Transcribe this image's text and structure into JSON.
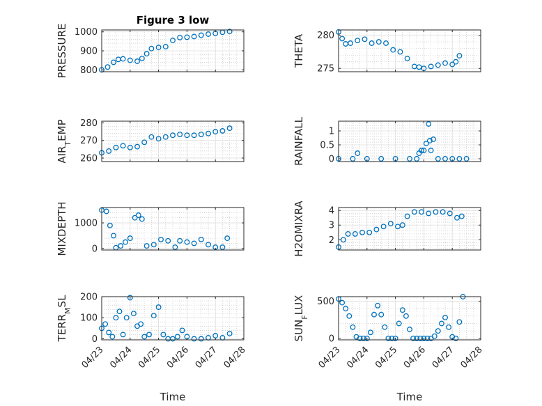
{
  "figure": {
    "title": "Figure 3 low"
  },
  "style": {
    "marker_color": "#0072BD",
    "axis_color": "#262626",
    "grid_color": "#c8c8c8"
  },
  "chart_data": [
    {
      "id": "pressure",
      "type": "scatter",
      "ylabel": "PRESSURE",
      "title": "Figure 3 low",
      "xlim": [
        "04/23",
        "04/28"
      ],
      "ylim": [
        790,
        1010
      ],
      "yticks": [
        800,
        900,
        1000
      ],
      "x": [
        "04/23 00:00",
        "04/23 05:00",
        "04/23 10:00",
        "04/23 14:00",
        "04/23 18:00",
        "04/24 00:00",
        "04/24 06:00",
        "04/24 10:00",
        "04/24 14:00",
        "04/24 18:00",
        "04/25 00:00",
        "04/25 06:00",
        "04/25 12:00",
        "04/25 18:00",
        "04/26 00:00",
        "04/26 06:00",
        "04/26 12:00",
        "04/26 18:00",
        "04/27 00:00",
        "04/27 06:00",
        "04/27 12:00"
      ],
      "y": [
        800,
        815,
        840,
        855,
        858,
        850,
        845,
        860,
        885,
        912,
        918,
        922,
        955,
        970,
        972,
        975,
        982,
        988,
        992,
        998,
        1002
      ]
    },
    {
      "id": "theta",
      "type": "scatter",
      "ylabel": "THETA",
      "xlim": [
        "04/23",
        "04/28"
      ],
      "ylim": [
        274.5,
        280.8
      ],
      "yticks": [
        275,
        280
      ],
      "x": [
        "04/23 00:00",
        "04/23 03:00",
        "04/23 06:00",
        "04/23 10:00",
        "04/23 16:00",
        "04/23 22:00",
        "04/24 04:00",
        "04/24 10:00",
        "04/24 16:00",
        "04/24 22:00",
        "04/25 04:00",
        "04/25 10:00",
        "04/25 16:00",
        "04/25 20:00",
        "04/26 00:00",
        "04/26 06:00",
        "04/26 12:00",
        "04/26 18:00",
        "04/27 00:00",
        "04/27 03:00",
        "04/27 06:00"
      ],
      "y": [
        280.5,
        279.5,
        278.7,
        278.8,
        279.2,
        279.4,
        278.8,
        279.0,
        278.8,
        277.8,
        277.5,
        276.5,
        275.3,
        275.2,
        275.0,
        275.3,
        275.5,
        275.8,
        275.6,
        276.0,
        276.9
      ]
    },
    {
      "id": "air_temp",
      "type": "scatter",
      "ylabel": "AIR_TEMP",
      "xlim": [
        "04/23",
        "04/28"
      ],
      "ylim": [
        258,
        281
      ],
      "yticks": [
        260,
        270,
        280
      ],
      "x": [
        "04/23 00:00",
        "04/23 06:00",
        "04/23 12:00",
        "04/23 18:00",
        "04/24 00:00",
        "04/24 06:00",
        "04/24 12:00",
        "04/24 18:00",
        "04/25 00:00",
        "04/25 06:00",
        "04/25 12:00",
        "04/25 18:00",
        "04/26 00:00",
        "04/26 06:00",
        "04/26 12:00",
        "04/26 18:00",
        "04/27 00:00",
        "04/27 06:00",
        "04/27 12:00"
      ],
      "y": [
        263,
        264,
        266,
        267,
        266,
        266.5,
        269,
        272,
        271,
        272,
        273,
        273.5,
        273,
        273,
        273.5,
        274,
        275,
        275.5,
        277
      ]
    },
    {
      "id": "rainfall",
      "type": "scatter",
      "ylabel": "RAINFALL",
      "xlim": [
        "04/23",
        "04/28"
      ],
      "ylim": [
        -0.1,
        1.35
      ],
      "yticks": [
        0,
        0.5,
        1
      ],
      "x": [
        "04/23 00:00",
        "04/23 12:00",
        "04/23 16:00",
        "04/24 00:00",
        "04/24 12:00",
        "04/25 00:00",
        "04/25 12:00",
        "04/25 18:00",
        "04/25 20:00",
        "04/25 22:00",
        "04/26 00:00",
        "04/26 02:00",
        "04/26 04:00",
        "04/26 05:00",
        "04/26 06:00",
        "04/26 08:00",
        "04/26 12:00",
        "04/26 18:00",
        "04/27 00:00",
        "04/27 06:00",
        "04/27 12:00"
      ],
      "y": [
        0,
        0,
        0.2,
        0,
        0,
        0,
        0,
        0,
        0.2,
        0.3,
        0.3,
        0.55,
        1.25,
        0.65,
        0.3,
        0.7,
        0,
        0,
        0,
        0,
        0
      ]
    },
    {
      "id": "mixdepth",
      "type": "scatter",
      "ylabel": "MIXDEPTH",
      "xlim": [
        "04/23",
        "04/28"
      ],
      "ylim": [
        -60,
        1600
      ],
      "yticks": [
        0,
        1000
      ],
      "x": [
        "04/23 00:00",
        "04/23 04:00",
        "04/23 07:00",
        "04/23 10:00",
        "04/23 12:00",
        "04/23 16:00",
        "04/23 20:00",
        "04/24 00:00",
        "04/24 04:00",
        "04/24 07:00",
        "04/24 10:00",
        "04/24 14:00",
        "04/24 20:00",
        "04/25 02:00",
        "04/25 08:00",
        "04/25 14:00",
        "04/25 18:00",
        "04/26 00:00",
        "04/26 06:00",
        "04/26 12:00",
        "04/26 18:00",
        "04/27 00:00",
        "04/27 06:00",
        "04/27 10:00"
      ],
      "y": [
        1500,
        1450,
        900,
        500,
        30,
        100,
        250,
        400,
        1200,
        1300,
        1150,
        100,
        150,
        350,
        300,
        50,
        300,
        250,
        200,
        350,
        150,
        50,
        50,
        400
      ]
    },
    {
      "id": "h2omixra",
      "type": "scatter",
      "ylabel": "H2OMIXRA",
      "xlim": [
        "04/23",
        "04/28"
      ],
      "ylim": [
        1.3,
        4.2
      ],
      "yticks": [
        2,
        3,
        4
      ],
      "x": [
        "04/23 00:00",
        "04/23 04:00",
        "04/23 08:00",
        "04/23 14:00",
        "04/23 20:00",
        "04/24 02:00",
        "04/24 08:00",
        "04/24 14:00",
        "04/24 20:00",
        "04/25 02:00",
        "04/25 06:00",
        "04/25 10:00",
        "04/25 16:00",
        "04/25 22:00",
        "04/26 04:00",
        "04/26 10:00",
        "04/26 16:00",
        "04/26 22:00",
        "04/27 04:00",
        "04/27 08:00"
      ],
      "y": [
        1.5,
        2.0,
        2.4,
        2.4,
        2.5,
        2.5,
        2.7,
        2.9,
        3.1,
        2.9,
        3.0,
        3.6,
        3.9,
        3.9,
        3.8,
        3.9,
        3.9,
        3.8,
        3.5,
        3.6
      ]
    },
    {
      "id": "terr_msl",
      "type": "scatter",
      "ylabel": "TERR_MSL",
      "xlim": [
        "04/23",
        "04/28"
      ],
      "ylim": [
        -5,
        200
      ],
      "yticks": [
        0,
        100,
        200
      ],
      "x": [
        "04/23 00:00",
        "04/23 03:00",
        "04/23 06:00",
        "04/23 09:00",
        "04/23 12:00",
        "04/23 15:00",
        "04/23 18:00",
        "04/23 21:00",
        "04/24 00:00",
        "04/24 03:00",
        "04/24 06:00",
        "04/24 09:00",
        "04/24 12:00",
        "04/24 16:00",
        "04/24 20:00",
        "04/25 00:00",
        "04/25 04:00",
        "04/25 08:00",
        "04/25 12:00",
        "04/25 16:00",
        "04/25 20:00",
        "04/26 00:00",
        "04/26 06:00",
        "04/26 12:00",
        "04/26 18:00",
        "04/27 00:00",
        "04/27 06:00",
        "04/27 12:00"
      ],
      "y": [
        50,
        70,
        30,
        10,
        100,
        130,
        20,
        100,
        195,
        120,
        60,
        70,
        10,
        20,
        110,
        150,
        20,
        0,
        0,
        10,
        40,
        10,
        0,
        0,
        5,
        15,
        5,
        25
      ]
    },
    {
      "id": "sun_flux",
      "type": "scatter",
      "ylabel": "SUN_FLUX",
      "xlim": [
        "04/23",
        "04/28"
      ],
      "ylim": [
        -20,
        560
      ],
      "yticks": [
        0,
        500
      ],
      "x": [
        "04/23 00:00",
        "04/23 03:00",
        "04/23 06:00",
        "04/23 09:00",
        "04/23 12:00",
        "04/23 15:00",
        "04/23 18:00",
        "04/23 21:00",
        "04/24 00:00",
        "04/24 03:00",
        "04/24 06:00",
        "04/24 09:00",
        "04/24 12:00",
        "04/24 15:00",
        "04/24 18:00",
        "04/24 21:00",
        "04/25 00:00",
        "04/25 03:00",
        "04/25 06:00",
        "04/25 09:00",
        "04/25 12:00",
        "04/25 15:00",
        "04/25 18:00",
        "04/25 21:00",
        "04/26 00:00",
        "04/26 03:00",
        "04/26 06:00",
        "04/26 09:00",
        "04/26 12:00",
        "04/26 15:00",
        "04/26 18:00",
        "04/26 21:00",
        "04/27 00:00",
        "04/27 03:00",
        "04/27 06:00",
        "04/27 09:00"
      ],
      "y": [
        530,
        480,
        400,
        300,
        150,
        20,
        0,
        0,
        0,
        80,
        320,
        440,
        320,
        150,
        0,
        0,
        0,
        200,
        380,
        300,
        120,
        0,
        0,
        0,
        0,
        0,
        0,
        30,
        100,
        200,
        280,
        150,
        20,
        0,
        220,
        560
      ]
    }
  ],
  "xaxis": {
    "label": "Time",
    "ticks": [
      "04/23",
      "04/24",
      "04/25",
      "04/26",
      "04/27",
      "04/28"
    ]
  }
}
